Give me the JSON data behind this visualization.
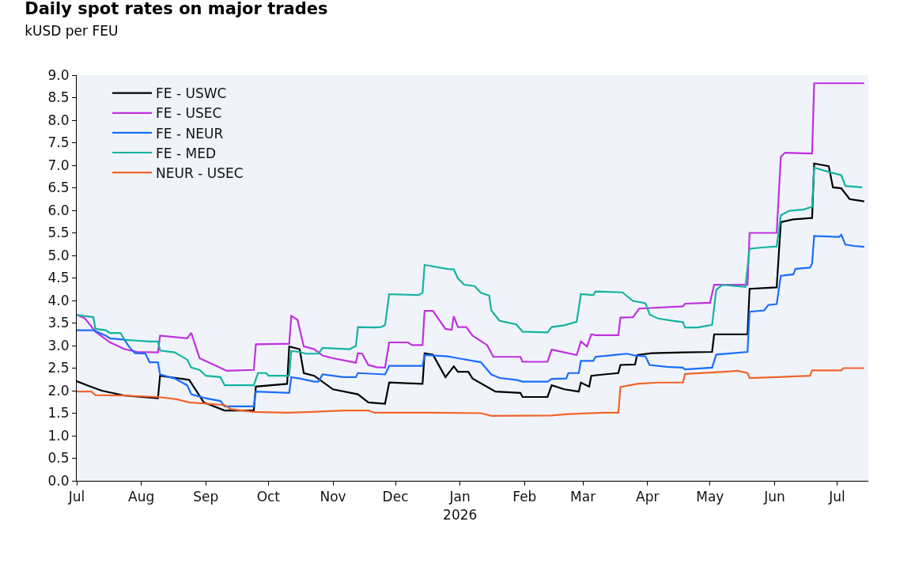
{
  "chart_data": {
    "type": "line",
    "title": "Daily spot rates on major trades",
    "subtitle": "kUSD per FEU",
    "xlim": [
      "2025-07-01",
      "2026-07-16"
    ],
    "xticks": [
      {
        "value": "2025-07-01",
        "label": "Jul"
      },
      {
        "value": "2025-08-01",
        "label": "Aug"
      },
      {
        "value": "2025-09-01",
        "label": "Sep"
      },
      {
        "value": "2025-10-01",
        "label": "Oct"
      },
      {
        "value": "2025-11-01",
        "label": "Nov"
      },
      {
        "value": "2025-12-01",
        "label": "Dec"
      },
      {
        "value": "2026-01-01",
        "label": "Jan\n2026"
      },
      {
        "value": "2026-02-01",
        "label": "Feb"
      },
      {
        "value": "2026-03-01",
        "label": "Mar"
      },
      {
        "value": "2026-04-01",
        "label": "Apr"
      },
      {
        "value": "2026-05-01",
        "label": "May"
      },
      {
        "value": "2026-06-01",
        "label": "Jun"
      },
      {
        "value": "2026-07-01",
        "label": "Jul"
      }
    ],
    "ylim": [
      0,
      9
    ],
    "yticks": [
      {
        "value": 0,
        "label": "0.0"
      },
      0.5,
      {
        "value": 1,
        "label": "1.0"
      },
      1.5,
      {
        "value": 2,
        "label": "2.0"
      },
      2.5,
      {
        "value": 3,
        "label": "3.0"
      },
      3.5,
      {
        "value": 4,
        "label": "4.0"
      },
      4.5,
      {
        "value": 5,
        "label": "5.0"
      },
      5.5,
      {
        "value": 6,
        "label": "6.0"
      },
      6.5,
      {
        "value": 7,
        "label": "7.0"
      },
      7.5,
      {
        "value": 8,
        "label": "8.0"
      },
      8.5,
      {
        "value": 9,
        "label": "9.0"
      }
    ],
    "grid": false,
    "legend": "top left",
    "marker": "none",
    "line_style": "solid",
    "series": [
      {
        "name": "FE - USWC",
        "color": "#000000",
        "x": [
          "2025-07-01",
          "2025-07-06",
          "2025-07-13",
          "2025-07-24",
          "2025-08-09",
          "2025-08-10",
          "2025-08-24",
          "2025-08-31",
          "2025-09-10",
          "2025-09-24",
          "2025-09-25",
          "2025-10-10",
          "2025-10-11",
          "2025-10-16",
          "2025-10-18",
          "2025-10-23",
          "2025-11-01",
          "2025-11-13",
          "2025-11-18",
          "2025-11-26",
          "2025-11-28",
          "2025-12-14",
          "2025-12-15",
          "2025-12-19",
          "2025-12-25",
          "2025-12-29",
          "2025-12-31",
          "2026-01-05",
          "2026-01-07",
          "2026-01-18",
          "2026-01-30",
          "2026-01-31",
          "2026-02-12",
          "2026-02-14",
          "2026-02-20",
          "2026-02-27",
          "2026-02-28",
          "2026-03-04",
          "2026-03-05",
          "2026-03-11",
          "2026-03-18",
          "2026-03-19",
          "2026-03-26",
          "2026-03-27",
          "2026-04-03",
          "2026-04-18",
          "2026-05-02",
          "2026-05-03",
          "2026-05-19",
          "2026-05-20",
          "2026-06-02",
          "2026-06-04",
          "2026-06-10",
          "2026-06-19",
          "2026-06-20",
          "2026-06-27",
          "2026-06-29",
          "2026-07-03",
          "2026-07-07",
          "2026-07-14"
        ],
        "values": [
          2.21,
          2.12,
          2.0,
          1.89,
          1.83,
          2.33,
          2.24,
          1.74,
          1.56,
          1.56,
          2.09,
          2.15,
          2.98,
          2.92,
          2.39,
          2.33,
          2.03,
          1.92,
          1.74,
          1.71,
          2.18,
          2.15,
          2.83,
          2.8,
          2.3,
          2.54,
          2.42,
          2.42,
          2.27,
          1.98,
          1.95,
          1.86,
          1.86,
          2.12,
          2.03,
          1.98,
          2.18,
          2.09,
          2.33,
          2.36,
          2.39,
          2.57,
          2.58,
          2.79,
          2.83,
          2.85,
          2.86,
          3.25,
          3.25,
          4.26,
          4.29,
          5.74,
          5.8,
          5.83,
          7.04,
          6.98,
          6.51,
          6.49,
          6.25,
          6.2
        ]
      },
      {
        "name": "FE - USEC",
        "color": "#c030e0",
        "x": [
          "2025-07-01",
          "2025-07-05",
          "2025-07-10",
          "2025-07-17",
          "2025-07-24",
          "2025-07-30",
          "2025-08-09",
          "2025-08-10",
          "2025-08-23",
          "2025-08-25",
          "2025-08-29",
          "2025-09-05",
          "2025-09-11",
          "2025-09-24",
          "2025-09-25",
          "2025-10-11",
          "2025-10-12",
          "2025-10-15",
          "2025-10-18",
          "2025-10-23",
          "2025-10-27",
          "2025-11-01",
          "2025-11-12",
          "2025-11-13",
          "2025-11-15",
          "2025-11-18",
          "2025-11-22",
          "2025-11-26",
          "2025-11-28",
          "2025-12-07",
          "2025-12-09",
          "2025-12-14",
          "2025-12-15",
          "2025-12-19",
          "2025-12-25",
          "2025-12-28",
          "2025-12-29",
          "2025-12-31",
          "2026-01-04",
          "2026-01-07",
          "2026-01-14",
          "2026-01-17",
          "2026-01-30",
          "2026-01-31",
          "2026-02-12",
          "2026-02-14",
          "2026-02-26",
          "2026-02-28",
          "2026-03-03",
          "2026-03-05",
          "2026-03-07",
          "2026-03-18",
          "2026-03-19",
          "2026-03-25",
          "2026-03-28",
          "2026-04-18",
          "2026-04-19",
          "2026-05-01",
          "2026-05-03",
          "2026-05-19",
          "2026-05-20",
          "2026-06-02",
          "2026-06-04",
          "2026-06-06",
          "2026-06-19",
          "2026-06-20",
          "2026-07-14"
        ],
        "values": [
          3.69,
          3.6,
          3.31,
          3.07,
          2.92,
          2.86,
          2.85,
          3.22,
          3.16,
          3.28,
          2.72,
          2.57,
          2.44,
          2.46,
          3.03,
          3.04,
          3.66,
          3.57,
          2.98,
          2.92,
          2.78,
          2.72,
          2.62,
          2.83,
          2.82,
          2.57,
          2.52,
          2.51,
          3.07,
          3.07,
          3.01,
          3.01,
          3.77,
          3.77,
          3.37,
          3.35,
          3.65,
          3.41,
          3.41,
          3.22,
          3.01,
          2.75,
          2.75,
          2.64,
          2.64,
          2.91,
          2.79,
          3.09,
          2.98,
          3.25,
          3.23,
          3.23,
          3.62,
          3.63,
          3.82,
          3.87,
          3.93,
          3.95,
          4.35,
          4.35,
          5.5,
          5.5,
          7.19,
          7.28,
          7.26,
          8.82,
          8.82
        ]
      },
      {
        "name": "FE - NEUR",
        "color": "#1a6cff",
        "x": [
          "2025-07-01",
          "2025-07-09",
          "2025-07-15",
          "2025-07-17",
          "2025-07-24",
          "2025-07-26",
          "2025-07-29",
          "2025-08-03",
          "2025-08-05",
          "2025-08-09",
          "2025-08-10",
          "2025-08-17",
          "2025-08-23",
          "2025-08-25",
          "2025-09-01",
          "2025-09-08",
          "2025-09-10",
          "2025-09-24",
          "2025-09-25",
          "2025-10-11",
          "2025-10-12",
          "2025-10-16",
          "2025-10-23",
          "2025-10-25",
          "2025-10-27",
          "2025-11-06",
          "2025-11-12",
          "2025-11-13",
          "2025-11-26",
          "2025-11-28",
          "2025-12-14",
          "2025-12-15",
          "2025-12-26",
          "2025-12-31",
          "2026-01-11",
          "2026-01-16",
          "2026-01-20",
          "2026-01-28",
          "2026-01-31",
          "2026-02-12",
          "2026-02-14",
          "2026-02-21",
          "2026-02-22",
          "2026-02-27",
          "2026-02-28",
          "2026-03-06",
          "2026-03-07",
          "2026-03-18",
          "2026-03-22",
          "2026-03-26",
          "2026-03-31",
          "2026-04-02",
          "2026-04-10",
          "2026-04-18",
          "2026-04-19",
          "2026-05-02",
          "2026-05-04",
          "2026-05-19",
          "2026-05-20",
          "2026-05-27",
          "2026-05-29",
          "2026-06-02",
          "2026-06-04",
          "2026-06-10",
          "2026-06-11",
          "2026-06-18",
          "2026-06-19",
          "2026-06-20",
          "2026-07-02",
          "2026-07-03",
          "2026-07-05",
          "2026-07-09",
          "2026-07-14"
        ],
        "values": [
          3.34,
          3.34,
          3.22,
          3.16,
          3.13,
          2.98,
          2.83,
          2.82,
          2.63,
          2.63,
          2.36,
          2.27,
          2.12,
          1.92,
          1.83,
          1.77,
          1.65,
          1.65,
          1.98,
          1.95,
          2.3,
          2.27,
          2.2,
          2.2,
          2.36,
          2.3,
          2.3,
          2.39,
          2.36,
          2.55,
          2.55,
          2.79,
          2.76,
          2.72,
          2.63,
          2.36,
          2.28,
          2.24,
          2.2,
          2.2,
          2.26,
          2.27,
          2.39,
          2.39,
          2.66,
          2.66,
          2.75,
          2.8,
          2.82,
          2.78,
          2.76,
          2.57,
          2.53,
          2.51,
          2.47,
          2.51,
          2.8,
          2.86,
          3.75,
          3.78,
          3.9,
          3.92,
          4.55,
          4.58,
          4.7,
          4.73,
          4.82,
          5.43,
          5.41,
          5.46,
          5.24,
          5.21,
          5.19
        ]
      },
      {
        "name": "FE - MED",
        "color": "#14b3a0",
        "x": [
          "2025-07-01",
          "2025-07-09",
          "2025-07-10",
          "2025-07-15",
          "2025-07-17",
          "2025-07-22",
          "2025-07-24",
          "2025-07-30",
          "2025-08-05",
          "2025-08-09",
          "2025-08-10",
          "2025-08-17",
          "2025-08-23",
          "2025-08-25",
          "2025-08-29",
          "2025-09-01",
          "2025-09-08",
          "2025-09-10",
          "2025-09-24",
          "2025-09-26",
          "2025-09-30",
          "2025-10-01",
          "2025-10-11",
          "2025-10-12",
          "2025-10-16",
          "2025-10-19",
          "2025-10-25",
          "2025-10-27",
          "2025-11-09",
          "2025-11-12",
          "2025-11-13",
          "2025-11-21",
          "2025-11-24",
          "2025-11-26",
          "2025-11-28",
          "2025-12-12",
          "2025-12-14",
          "2025-12-15",
          "2025-12-26",
          "2025-12-29",
          "2025-12-31",
          "2026-01-03",
          "2026-01-08",
          "2026-01-11",
          "2026-01-15",
          "2026-01-16",
          "2026-01-20",
          "2026-01-28",
          "2026-01-31",
          "2026-02-12",
          "2026-02-14",
          "2026-02-20",
          "2026-02-26",
          "2026-02-28",
          "2026-03-06",
          "2026-03-07",
          "2026-03-20",
          "2026-03-25",
          "2026-03-31",
          "2026-04-02",
          "2026-04-06",
          "2026-04-13",
          "2026-04-18",
          "2026-04-19",
          "2026-04-25",
          "2026-05-02",
          "2026-05-04",
          "2026-05-07",
          "2026-05-18",
          "2026-05-20",
          "2026-05-27",
          "2026-06-02",
          "2026-06-04",
          "2026-06-08",
          "2026-06-15",
          "2026-06-19",
          "2026-06-20",
          "2026-06-28",
          "2026-07-03",
          "2026-07-05",
          "2026-07-13"
        ],
        "values": [
          3.68,
          3.63,
          3.37,
          3.34,
          3.28,
          3.28,
          3.13,
          3.11,
          3.09,
          3.09,
          2.89,
          2.85,
          2.69,
          2.51,
          2.46,
          2.33,
          2.3,
          2.12,
          2.12,
          2.39,
          2.39,
          2.33,
          2.33,
          2.88,
          2.86,
          2.82,
          2.82,
          2.95,
          2.92,
          2.99,
          3.41,
          3.4,
          3.41,
          3.45,
          4.14,
          4.12,
          4.17,
          4.79,
          4.7,
          4.69,
          4.49,
          4.35,
          4.32,
          4.17,
          4.11,
          3.78,
          3.55,
          3.47,
          3.31,
          3.29,
          3.41,
          3.45,
          3.53,
          4.14,
          4.12,
          4.2,
          4.18,
          3.99,
          3.94,
          3.69,
          3.6,
          3.55,
          3.52,
          3.4,
          3.4,
          3.46,
          4.24,
          4.35,
          4.3,
          5.15,
          5.18,
          5.2,
          5.89,
          5.99,
          6.02,
          6.08,
          6.95,
          6.84,
          6.78,
          6.54,
          6.51
        ]
      },
      {
        "name": "NEUR - USEC",
        "color": "#f0642a",
        "x": [
          "2025-07-01",
          "2025-07-08",
          "2025-07-10",
          "2025-07-24",
          "2025-08-09",
          "2025-08-18",
          "2025-08-24",
          "2025-09-02",
          "2025-09-10",
          "2025-09-13",
          "2025-09-24",
          "2025-10-10",
          "2025-10-22",
          "2025-11-06",
          "2025-11-18",
          "2025-11-21",
          "2025-12-19",
          "2026-01-11",
          "2026-01-16",
          "2026-02-14",
          "2026-02-22",
          "2026-03-11",
          "2026-03-18",
          "2026-03-19",
          "2026-03-27",
          "2026-04-06",
          "2026-04-18",
          "2026-04-19",
          "2026-05-08",
          "2026-05-14",
          "2026-05-19",
          "2026-05-20",
          "2026-06-02",
          "2026-06-18",
          "2026-06-19",
          "2026-07-03",
          "2026-07-04",
          "2026-07-14"
        ],
        "values": [
          1.98,
          1.98,
          1.9,
          1.89,
          1.86,
          1.81,
          1.74,
          1.71,
          1.68,
          1.59,
          1.53,
          1.51,
          1.53,
          1.56,
          1.56,
          1.51,
          1.51,
          1.5,
          1.44,
          1.45,
          1.48,
          1.51,
          1.51,
          2.08,
          2.15,
          2.18,
          2.18,
          2.37,
          2.42,
          2.44,
          2.39,
          2.28,
          2.3,
          2.33,
          2.45,
          2.45,
          2.5,
          2.5
        ]
      }
    ]
  }
}
